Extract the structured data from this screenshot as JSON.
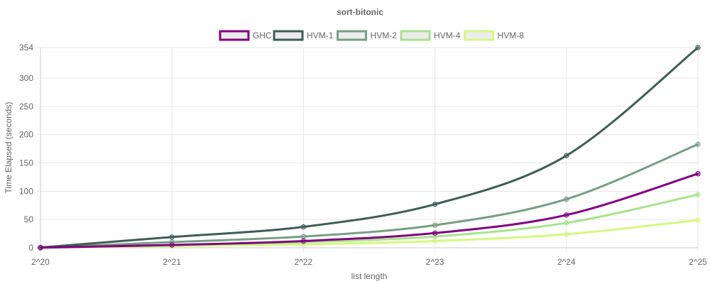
{
  "chart_data": {
    "type": "line",
    "title": "sort-bitonic",
    "xlabel": "list length",
    "ylabel": "Time Elapsed (seconds)",
    "categories": [
      "2^20",
      "2^21",
      "2^22",
      "2^23",
      "2^24",
      "2^25"
    ],
    "ylim": [
      0,
      354
    ],
    "yticks": [
      0,
      50,
      100,
      150,
      200,
      250,
      300,
      354
    ],
    "grid": true,
    "legend_position": "top",
    "series": [
      {
        "name": "GHC",
        "color": "#800080",
        "values": [
          0.3,
          5,
          12,
          26,
          58,
          131
        ]
      },
      {
        "name": "HVM-1",
        "color": "#3e5d55",
        "values": [
          0.5,
          19,
          37,
          77,
          163,
          354
        ]
      },
      {
        "name": "HVM-2",
        "color": "#779e86",
        "values": [
          0.3,
          10,
          20,
          40,
          86,
          183
        ]
      },
      {
        "name": "HVM-4",
        "color": "#a8e38d",
        "values": [
          0.2,
          5,
          10,
          20,
          44,
          94
        ]
      },
      {
        "name": "HVM-8",
        "color": "#d6f77f",
        "values": [
          0.1,
          3,
          6,
          12,
          24,
          49
        ]
      }
    ]
  }
}
